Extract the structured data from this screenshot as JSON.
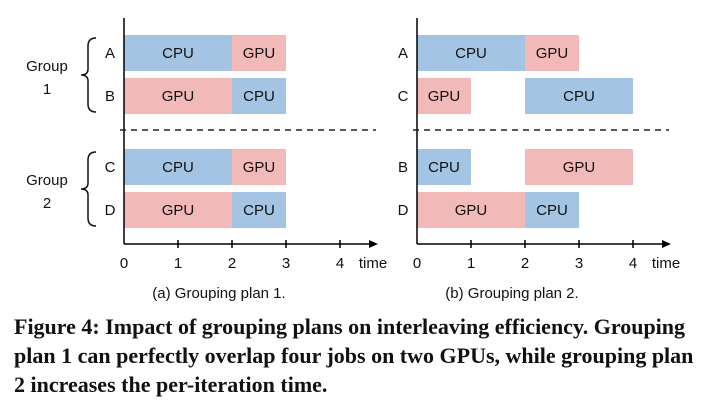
{
  "colors": {
    "cpu": "#a3c4e2",
    "gpu": "#f2b9b9",
    "axis": "#000000"
  },
  "axis": {
    "ticks": [
      "0",
      "1",
      "2",
      "3",
      "4"
    ],
    "unit_label": "time"
  },
  "groups": [
    {
      "line1": "Group",
      "line2": "1"
    },
    {
      "line1": "Group",
      "line2": "2"
    }
  ],
  "plans": [
    {
      "caption": "(a) Grouping plan 1.",
      "rows": [
        {
          "job": "A",
          "segments": [
            {
              "kind": "CPU",
              "start": 0,
              "end": 2
            },
            {
              "kind": "GPU",
              "start": 2,
              "end": 3
            }
          ]
        },
        {
          "job": "B",
          "segments": [
            {
              "kind": "GPU",
              "start": 0,
              "end": 2
            },
            {
              "kind": "CPU",
              "start": 2,
              "end": 3
            }
          ]
        },
        {
          "job": "C",
          "segments": [
            {
              "kind": "CPU",
              "start": 0,
              "end": 2
            },
            {
              "kind": "GPU",
              "start": 2,
              "end": 3
            }
          ]
        },
        {
          "job": "D",
          "segments": [
            {
              "kind": "GPU",
              "start": 0,
              "end": 2
            },
            {
              "kind": "CPU",
              "start": 2,
              "end": 3
            }
          ]
        }
      ]
    },
    {
      "caption": "(b) Grouping plan 2.",
      "rows": [
        {
          "job": "A",
          "segments": [
            {
              "kind": "CPU",
              "start": 0,
              "end": 2
            },
            {
              "kind": "GPU",
              "start": 2,
              "end": 3
            }
          ]
        },
        {
          "job": "C",
          "segments": [
            {
              "kind": "GPU",
              "start": 0,
              "end": 1
            },
            {
              "kind": "CPU",
              "start": 2,
              "end": 4
            }
          ]
        },
        {
          "job": "B",
          "segments": [
            {
              "kind": "CPU",
              "start": 0,
              "end": 1
            },
            {
              "kind": "GPU",
              "start": 2,
              "end": 4
            }
          ]
        },
        {
          "job": "D",
          "segments": [
            {
              "kind": "GPU",
              "start": 0,
              "end": 2
            },
            {
              "kind": "CPU",
              "start": 2,
              "end": 3
            }
          ]
        }
      ]
    }
  ],
  "caption": "Figure 4: Impact of grouping plans on interleaving efficiency. Grouping plan 1 can perfectly overlap four jobs on two GPUs, while grouping plan 2 increases the per-iteration time."
}
